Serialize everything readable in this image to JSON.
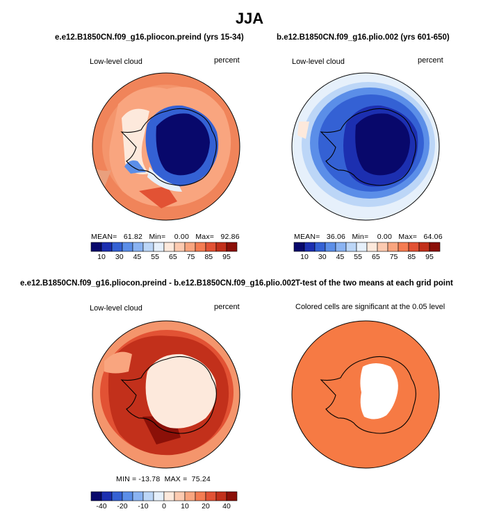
{
  "title": "JJA",
  "panels": [
    {
      "header": "e.e12.B1850CN.f09_g16.pliocon.preind (yrs 15-34)",
      "left_label": "Low-level cloud",
      "right_label": "percent",
      "stats": "MEAN=   61.82   Min=    0.00   Max=   92.86",
      "colorbar_ticks": [
        "10",
        "30",
        "45",
        "55",
        "65",
        "75",
        "85",
        "95"
      ]
    },
    {
      "header": "b.e12.B1850CN.f09_g16.plio.002 (yrs 601-650)",
      "left_label": "Low-level cloud",
      "right_label": "percent",
      "stats": "MEAN=   36.06   Min=    0.00   Max=   64.06",
      "colorbar_ticks": [
        "10",
        "30",
        "45",
        "55",
        "65",
        "75",
        "85",
        "95"
      ]
    },
    {
      "header": "e.e12.B1850CN.f09_g16.pliocon.preind - b.e12.B1850CN.f09_g16.plio.002",
      "left_label": "Low-level cloud",
      "right_label": "percent",
      "stats": "MIN = -13.78  MAX =  75.24",
      "colorbar_ticks": [
        "-40",
        "-20",
        "-10",
        "0",
        "10",
        "20",
        "40"
      ]
    },
    {
      "header": "T-test of the two means at each grid point",
      "subtitle": "Colored cells are significant at the 0.05 level"
    }
  ],
  "colors": {
    "abs_scale": [
      "#08086b",
      "#1c2fb0",
      "#3461d4",
      "#5b8ee8",
      "#8ab3f2",
      "#bcd6f7",
      "#e6f0fb",
      "#fde9dc",
      "#fccab0",
      "#f9a57f",
      "#f47c52",
      "#e25234",
      "#c2301b",
      "#8b1008"
    ],
    "diff_scale": [
      "#08086b",
      "#1c2fb0",
      "#3461d4",
      "#5b8ee8",
      "#8ab3f2",
      "#bcd6f7",
      "#e6f0fb",
      "#fde9dc",
      "#fccab0",
      "#f9a57f",
      "#f47c52",
      "#e25234",
      "#c2301b",
      "#8b1008"
    ],
    "significance": "#f67a44"
  }
}
